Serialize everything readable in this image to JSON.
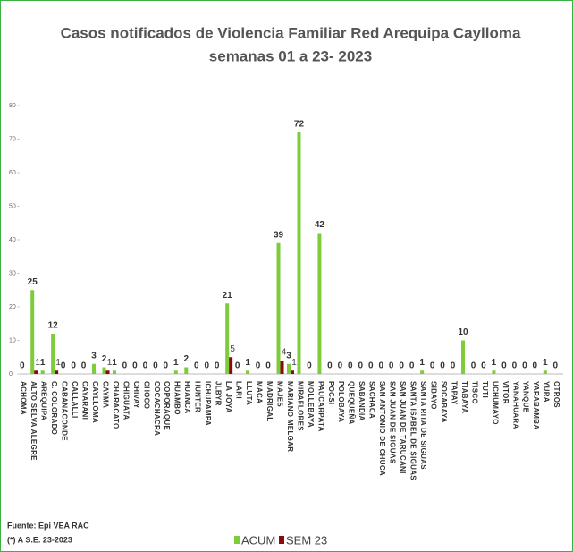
{
  "chart_data": {
    "type": "bar",
    "title": "Casos notificados  de Violencia Familiar Red Arequipa Caylloma",
    "subtitle": "semanas 01 a 23- 2023",
    "categories": [
      "ACHOMA",
      "ALTO SELVA ALEGRE",
      "AREQUIPA",
      "C. COLORADO",
      "CABANACONDE",
      "CALLALLI",
      "CAYARANI",
      "CAYLLOMA",
      "CAYMA",
      "CHARACATO",
      "CHIGUATA",
      "CHIVAY",
      "CHOCO",
      "COCACHACRA",
      "COPORAQUE",
      "HUAMBO",
      "HUANCA",
      "HUNTER",
      "ICHUPAMPA",
      "JLBYR",
      "LA JOYA",
      "LARI",
      "LLUTA",
      "MACA",
      "MADRIGAL",
      "MAJES",
      "MARIANO MELGAR",
      "MIRAFLORES",
      "MOLLEBAYA",
      "PAUCARPATA",
      "POCSI",
      "POLOBAYA",
      "QUEQUEÑA",
      "SABANDIA",
      "SACHACA",
      "SAN ANTONIO DE CHUCA",
      "SAN JUAN DE SIGUAS",
      "SAN JUAN DE TARUCANI",
      "SANTA ISABEL DE SIGUAS",
      "SANTA RITA DE SIGUAS",
      "SIBAYO",
      "SOCABAYA",
      "TAPAY",
      "TIABAYA",
      "TISCO",
      "TUTI",
      "UCHUMAYO",
      "VITOR",
      "YANAHUARA",
      "YANQUE",
      "YARABAMBA",
      "YURA",
      "OTROS"
    ],
    "series": [
      {
        "name": "ACUM",
        "color": "#7ccd3a",
        "values": [
          0,
          25,
          1,
          12,
          0,
          0,
          0,
          3,
          2,
          1,
          0,
          0,
          0,
          0,
          0,
          1,
          2,
          0,
          0,
          0,
          21,
          0,
          1,
          0,
          0,
          39,
          3,
          72,
          0,
          42,
          0,
          0,
          0,
          0,
          0,
          0,
          0,
          0,
          0,
          1,
          0,
          0,
          0,
          10,
          0,
          0,
          1,
          0,
          0,
          0,
          0,
          1,
          0
        ]
      },
      {
        "name": "SEM 23",
        "color": "#8b0a0a",
        "values": [
          0,
          1,
          0,
          1,
          0,
          0,
          0,
          0,
          1,
          0,
          0,
          0,
          0,
          0,
          0,
          0,
          0,
          0,
          0,
          0,
          5,
          0,
          0,
          0,
          0,
          4,
          1,
          0,
          0,
          0,
          0,
          0,
          0,
          0,
          0,
          0,
          0,
          0,
          0,
          0,
          0,
          0,
          0,
          0,
          0,
          0,
          0,
          0,
          0,
          0,
          0,
          0,
          0
        ]
      }
    ],
    "ylim": [
      0,
      80
    ],
    "yticks": [
      0,
      10,
      20,
      30,
      40,
      50,
      60,
      70,
      80
    ],
    "notes": [
      "Fuente: Epi VEA RAC",
      "(*) A S.E. 23-2023"
    ]
  }
}
